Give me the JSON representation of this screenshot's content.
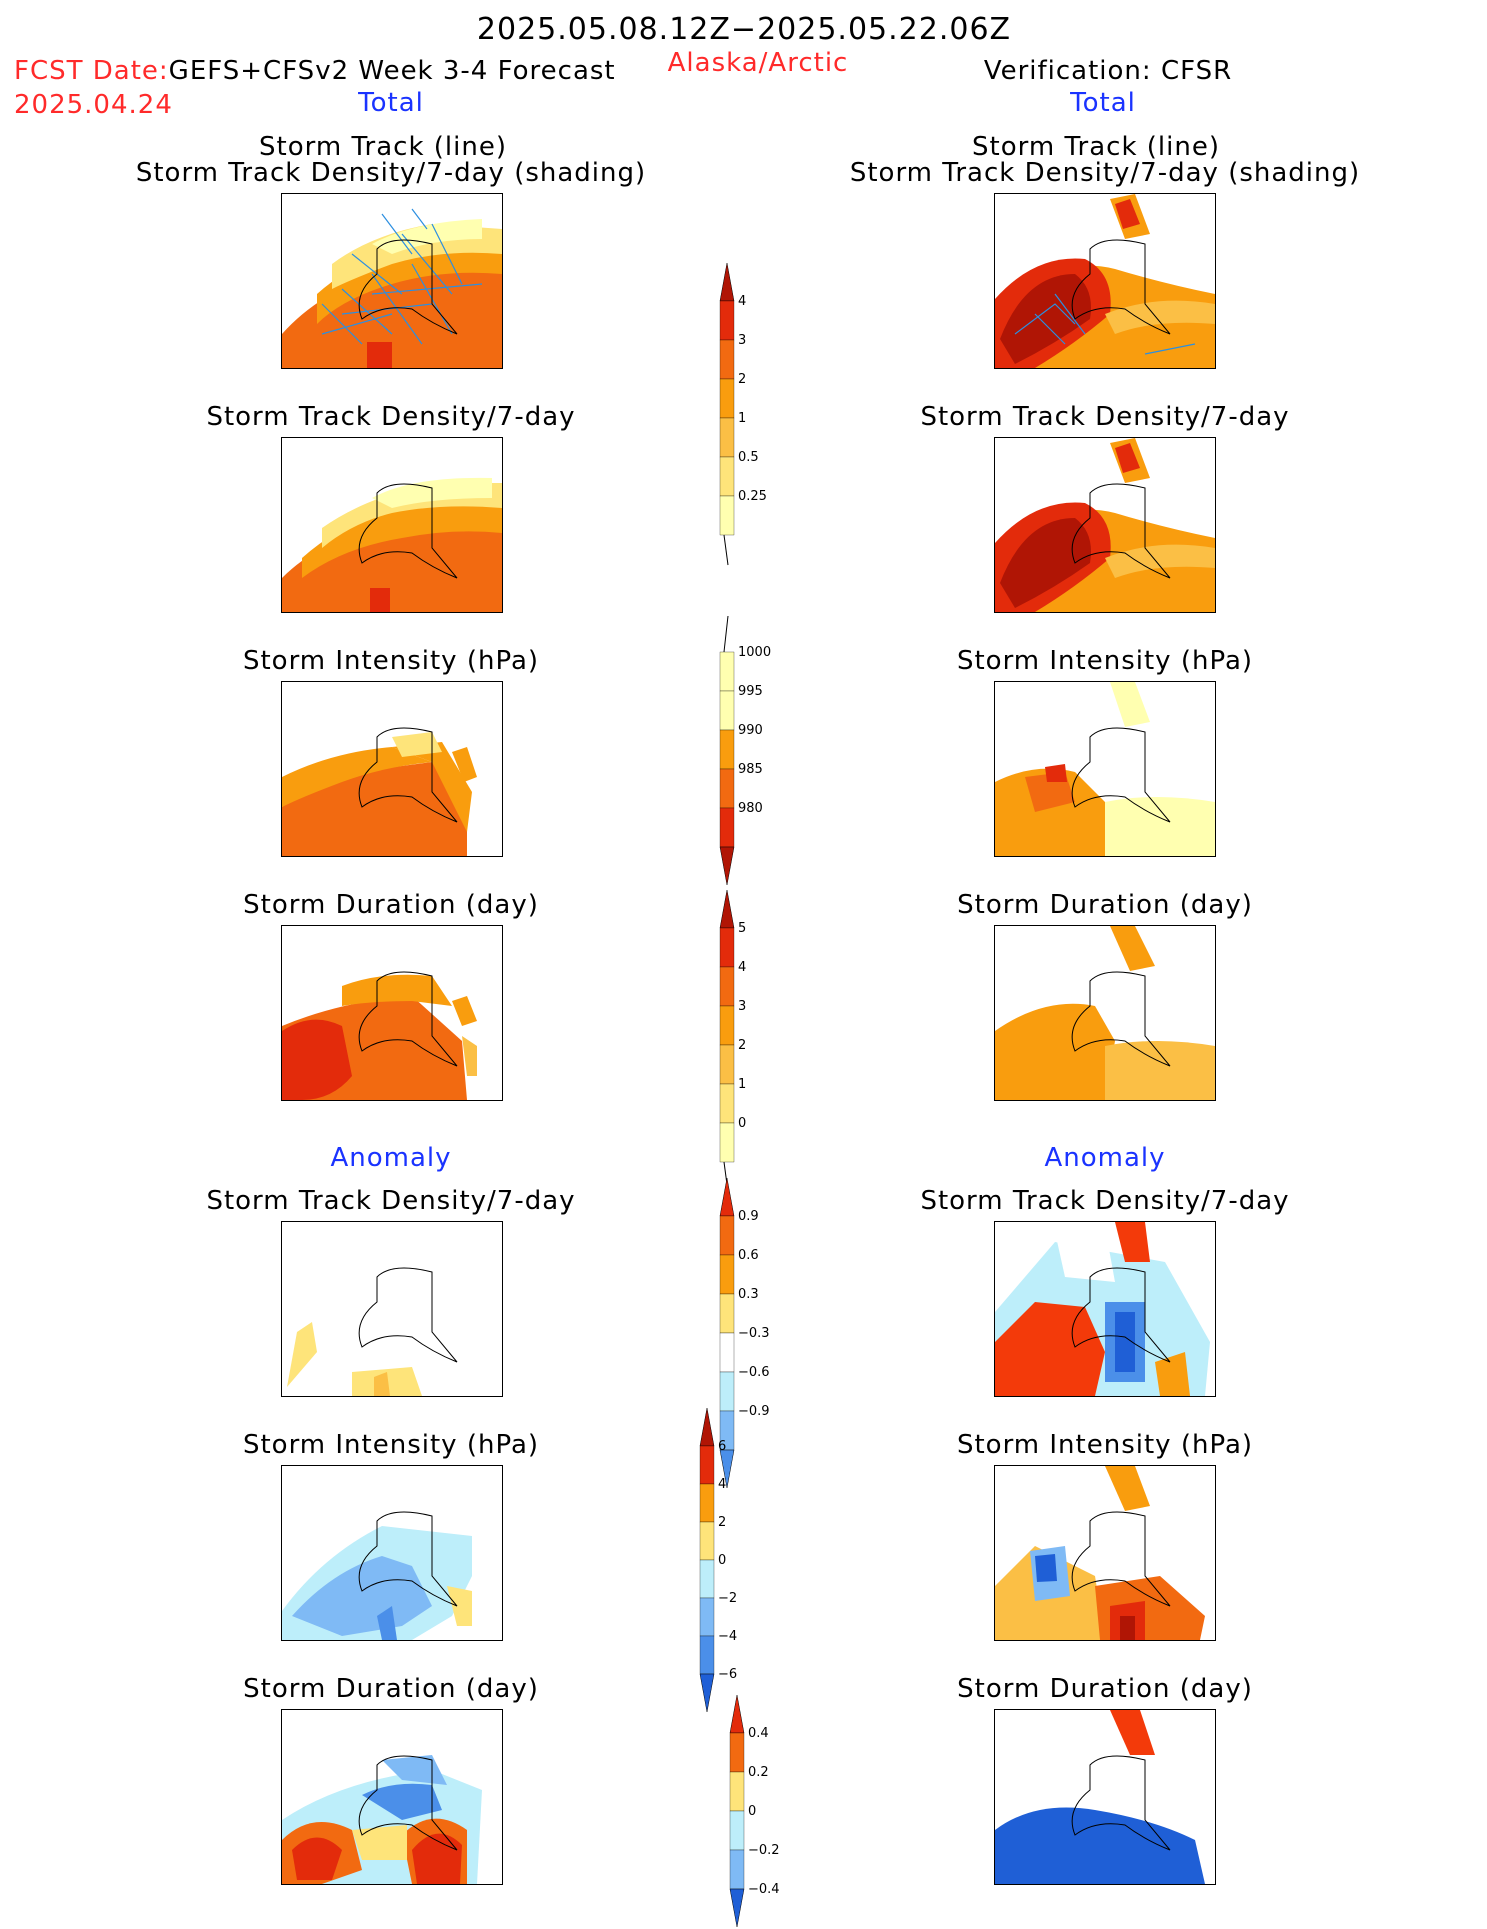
{
  "header": {
    "period": "2025.05.08.12Z−2025.05.22.06Z",
    "region": "Alaska/Arctic",
    "fcst_label": "FCST Date:",
    "forecast_name": "GEFS+CFSv2 Week 3-4 Forecast",
    "fcst_date": "2025.04.24",
    "verification": "Verification: CFSR",
    "left_total": "Total",
    "right_total": "Total",
    "left_anomaly": "Anomaly",
    "right_anomaly": "Anomaly"
  },
  "panel_titles": {
    "track_line": "Storm Track (line)",
    "track_density_shading": "Storm Track Density/7-day (shading)",
    "track_density": "Storm Track Density/7-day",
    "intensity": "Storm Intensity (hPa)",
    "duration": "Storm Duration (day)"
  },
  "colors": {
    "lightyellow": "#ffffb0",
    "yellow": "#fee47a",
    "lightorange": "#fbbf45",
    "orange": "#f99d0e",
    "darkorange": "#f26a11",
    "red": "#e32b0b",
    "darkred": "#b01505",
    "lightblue": "#bdeefa",
    "midblue": "#7fbaf5",
    "blue": "#4b8fe9",
    "darkblue": "#1f5fd6",
    "track": "#2c8fe0"
  },
  "chart_data": [
    {
      "type": "heatmap",
      "name": "Storm Track Density/7-day colorbar",
      "levels": [
        0.25,
        0.5,
        1,
        2,
        3,
        4
      ],
      "tick_labels": [
        "0.25",
        "0.5",
        "1",
        "2",
        "3",
        "4"
      ]
    },
    {
      "type": "heatmap",
      "name": "Storm Intensity (hPa) colorbar",
      "levels": [
        1000,
        995,
        990,
        985,
        980
      ],
      "tick_labels": [
        "1000",
        "995",
        "990",
        "985",
        "980"
      ]
    },
    {
      "type": "heatmap",
      "name": "Storm Duration (day) colorbar",
      "levels": [
        0,
        1,
        2,
        3,
        4,
        5
      ],
      "tick_labels": [
        "0",
        "1",
        "2",
        "3",
        "4",
        "5"
      ]
    },
    {
      "type": "heatmap",
      "name": "Storm Track Density anomaly colorbar",
      "levels": [
        -0.9,
        -0.6,
        -0.3,
        0.3,
        0.6,
        0.9
      ],
      "tick_labels": [
        "−0.9",
        "−0.6",
        "−0.3",
        "0.3",
        "0.6",
        "0.9"
      ]
    },
    {
      "type": "heatmap",
      "name": "Storm Intensity anomaly colorbar",
      "levels": [
        -6,
        -4,
        -2,
        0,
        2,
        4,
        6
      ],
      "tick_labels": [
        "−6",
        "−4",
        "−2",
        "0",
        "2",
        "4",
        "6"
      ]
    },
    {
      "type": "heatmap",
      "name": "Storm Duration anomaly colorbar",
      "levels": [
        -0.4,
        -0.2,
        0,
        0.2,
        0.4
      ],
      "tick_labels": [
        "−0.4",
        "−0.2",
        "0",
        "0.2",
        "0.4"
      ]
    }
  ]
}
